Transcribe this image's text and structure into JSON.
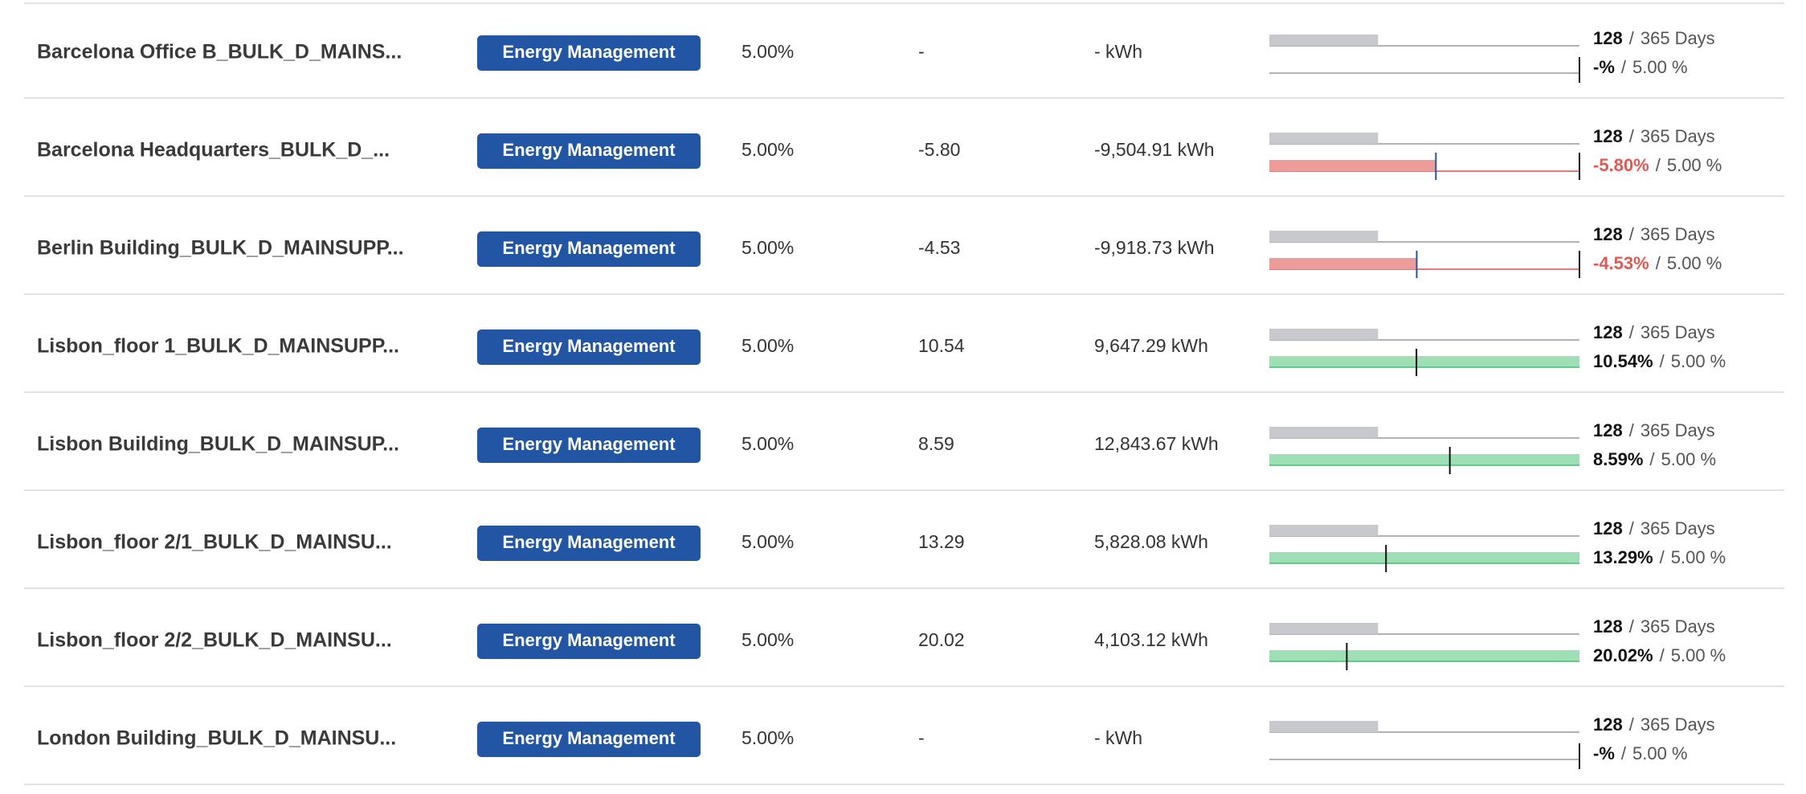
{
  "separator": "/",
  "table": {
    "rows": [
      {
        "name": "Barcelona Office B_BULK_D_MAINS...",
        "tag": "Energy Management",
        "target": "5.00%",
        "value": "-",
        "energy": "- kWh",
        "progress": {
          "days": 128,
          "days_total": 365,
          "days_unit": "Days",
          "pct": null,
          "pct_label": "-%",
          "target": 5,
          "target_label": "5.00 %"
        }
      },
      {
        "name": "Barcelona Headquarters_BULK_D_...",
        "tag": "Energy Management",
        "target": "5.00%",
        "value": "-5.80",
        "energy": "-9,504.91 kWh",
        "progress": {
          "days": 128,
          "days_total": 365,
          "days_unit": "Days",
          "pct": -5.8,
          "pct_label": "-5.80%",
          "target": 5,
          "target_label": "5.00 %"
        }
      },
      {
        "name": "Berlin Building_BULK_D_MAINSUPP...",
        "tag": "Energy Management",
        "target": "5.00%",
        "value": "-4.53",
        "energy": "-9,918.73 kWh",
        "progress": {
          "days": 128,
          "days_total": 365,
          "days_unit": "Days",
          "pct": -4.53,
          "pct_label": "-4.53%",
          "target": 5,
          "target_label": "5.00 %"
        }
      },
      {
        "name": "Lisbon_floor 1_BULK_D_MAINSUPP...",
        "tag": "Energy Management",
        "target": "5.00%",
        "value": "10.54",
        "energy": "9,647.29 kWh",
        "progress": {
          "days": 128,
          "days_total": 365,
          "days_unit": "Days",
          "pct": 10.54,
          "pct_label": "10.54%",
          "target": 5,
          "target_label": "5.00 %"
        }
      },
      {
        "name": "Lisbon Building_BULK_D_MAINSUP...",
        "tag": "Energy Management",
        "target": "5.00%",
        "value": "8.59",
        "energy": "12,843.67 kWh",
        "progress": {
          "days": 128,
          "days_total": 365,
          "days_unit": "Days",
          "pct": 8.59,
          "pct_label": "8.59%",
          "target": 5,
          "target_label": "5.00 %"
        }
      },
      {
        "name": "Lisbon_floor 2/1_BULK_D_MAINSU...",
        "tag": "Energy Management",
        "target": "5.00%",
        "value": "13.29",
        "energy": "5,828.08 kWh",
        "progress": {
          "days": 128,
          "days_total": 365,
          "days_unit": "Days",
          "pct": 13.29,
          "pct_label": "13.29%",
          "target": 5,
          "target_label": "5.00 %"
        }
      },
      {
        "name": "Lisbon_floor 2/2_BULK_D_MAINSU...",
        "tag": "Energy Management",
        "target": "5.00%",
        "value": "20.02",
        "energy": "4,103.12 kWh",
        "progress": {
          "days": 128,
          "days_total": 365,
          "days_unit": "Days",
          "pct": 20.02,
          "pct_label": "20.02%",
          "target": 5,
          "target_label": "5.00 %"
        }
      },
      {
        "name": "London Building_BULK_D_MAINSU...",
        "tag": "Energy Management",
        "target": "5.00%",
        "value": "-",
        "energy": "- kWh",
        "progress": {
          "days": 128,
          "days_total": 365,
          "days_unit": "Days",
          "pct": null,
          "pct_label": "-%",
          "target": 5,
          "target_label": "5.00 %"
        }
      }
    ]
  }
}
